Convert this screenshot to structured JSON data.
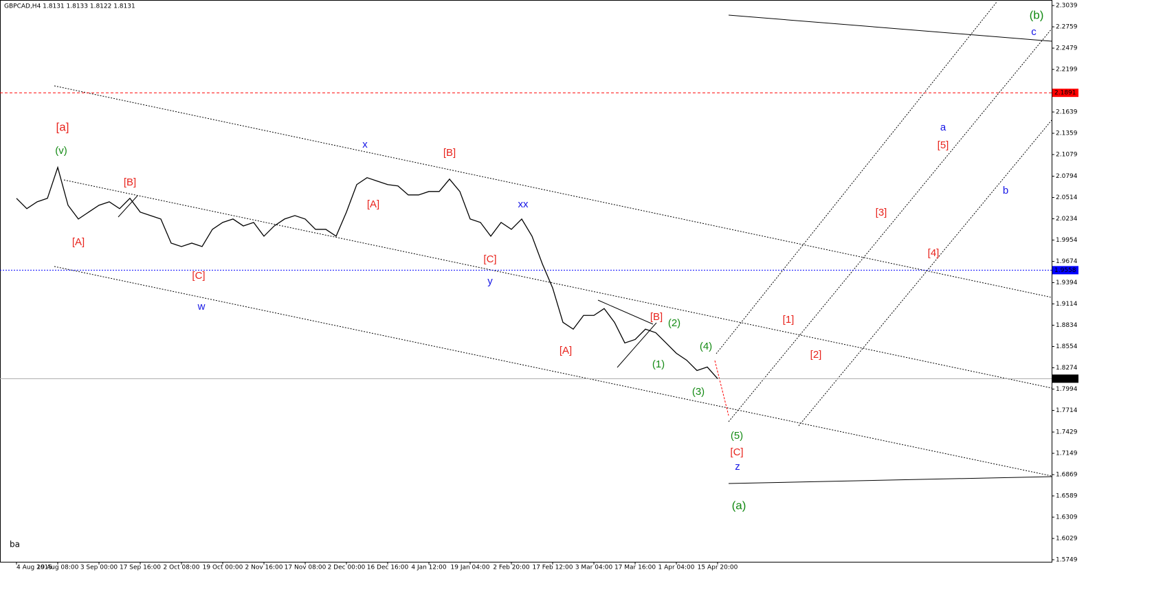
{
  "chart_data": {
    "type": "line",
    "title": "GBPCAD,H4  1.8131 1.8133 1.8122 1.8131",
    "color": "#000000",
    "categories": [
      "4 Aug 2015",
      null,
      null,
      null,
      "19 Aug 08:00",
      null,
      null,
      null,
      "3 Sep 00:00",
      null,
      null,
      null,
      "17 Sep 16:00",
      null,
      null,
      null,
      "2 Oct 08:00",
      null,
      null,
      null,
      "19 Oct 00:00",
      null,
      null,
      null,
      "2 Nov 16:00",
      null,
      null,
      null,
      "17 Nov 08:00",
      null,
      null,
      null,
      "2 Dec 00:00",
      null,
      null,
      null,
      "16 Dec 16:00",
      null,
      null,
      null,
      "4 Jan 12:00",
      null,
      null,
      null,
      "19 Jan 04:00",
      null,
      null,
      null,
      "2 Feb 20:00",
      null,
      null,
      null,
      "17 Feb 12:00",
      null,
      null,
      null,
      "3 Mar 04:00",
      null,
      null,
      null,
      "17 Mar 16:00",
      null,
      null,
      null,
      "1 Apr 04:00",
      null,
      null,
      null,
      "15 Apr 20:00"
    ],
    "values": [
      2.0503,
      2.0367,
      2.0457,
      2.0503,
      2.091,
      2.0412,
      2.0231,
      2.0322,
      2.0412,
      2.0457,
      2.0367,
      2.0503,
      2.0322,
      2.0276,
      2.0231,
      1.9914,
      1.9869,
      1.9914,
      1.9869,
      2.0095,
      2.0186,
      2.0231,
      2.014,
      2.0186,
      2.0005,
      2.014,
      2.0231,
      2.0276,
      2.0231,
      2.0095,
      2.0095,
      2.0005,
      2.0322,
      2.0684,
      2.0775,
      2.0729,
      2.0684,
      2.0666,
      2.0548,
      2.0548,
      2.0593,
      2.0593,
      2.0756,
      2.0593,
      2.0231,
      2.0186,
      2.0005,
      2.0186,
      2.0095,
      2.0231,
      2.0005,
      1.9642,
      1.9325,
      1.8872,
      1.8782,
      1.8963,
      1.8963,
      1.9053,
      1.8872,
      1.8601,
      1.8646,
      1.8782,
      1.8736,
      1.8601,
      1.8465,
      1.8374,
      1.8238,
      1.8284,
      1.8131
    ],
    "ylim": [
      1.5722,
      2.3112
    ],
    "yticks": [
      2.3039,
      2.2759,
      2.2479,
      2.2199,
      2.1639,
      2.1359,
      2.1079,
      2.0794,
      2.0514,
      2.0234,
      1.9954,
      1.9674,
      1.9394,
      1.9114,
      1.8834,
      1.8554,
      1.8274,
      1.7994,
      1.7714,
      1.7429,
      1.7149,
      1.6869,
      1.6589,
      1.6309,
      1.6029,
      1.5749
    ],
    "levels": [
      {
        "value": 2.1891,
        "color": "#ff0000",
        "style": "dashed"
      },
      {
        "value": 1.9558,
        "color": "#0000ff",
        "style": "dotted"
      },
      {
        "value": 1.8131,
        "color": "#000000",
        "style": "solid"
      }
    ],
    "annotations": [
      {
        "text": "[a]",
        "color": "#e8231c"
      },
      {
        "text": "(v)",
        "color": "#138a13"
      },
      {
        "text": "[B]",
        "color": "#e8231c"
      },
      {
        "text": "[A]",
        "color": "#e8231c"
      },
      {
        "text": "[C]",
        "color": "#e8231c"
      },
      {
        "text": "w",
        "color": "#1414e6"
      },
      {
        "text": "x",
        "color": "#1414e6"
      },
      {
        "text": "[B]",
        "color": "#e8231c"
      },
      {
        "text": "[A]",
        "color": "#e8231c"
      },
      {
        "text": "xx",
        "color": "#1414e6"
      },
      {
        "text": "[C]",
        "color": "#e8231c"
      },
      {
        "text": "y",
        "color": "#1414e6"
      },
      {
        "text": "[B]",
        "color": "#e8231c"
      },
      {
        "text": "(2)",
        "color": "#138a13"
      },
      {
        "text": "(4)",
        "color": "#138a13"
      },
      {
        "text": "(1)",
        "color": "#138a13"
      },
      {
        "text": "[A]",
        "color": "#e8231c"
      },
      {
        "text": "(3)",
        "color": "#138a13"
      },
      {
        "text": "(5)",
        "color": "#138a13"
      },
      {
        "text": "[C]",
        "color": "#e8231c"
      },
      {
        "text": "z",
        "color": "#1414e6"
      },
      {
        "text": "(a)",
        "color": "#138a13"
      },
      {
        "text": "[1]",
        "color": "#e8231c"
      },
      {
        "text": "[2]",
        "color": "#e8231c"
      },
      {
        "text": "[3]",
        "color": "#e8231c"
      },
      {
        "text": "[4]",
        "color": "#e8231c"
      },
      {
        "text": "[5]",
        "color": "#e8231c"
      },
      {
        "text": "a",
        "color": "#1414e6"
      },
      {
        "text": "b",
        "color": "#1414e6"
      },
      {
        "text": "c",
        "color": "#1414e6"
      },
      {
        "text": "(b)",
        "color": "#138a13"
      }
    ],
    "footnote": "ba"
  }
}
